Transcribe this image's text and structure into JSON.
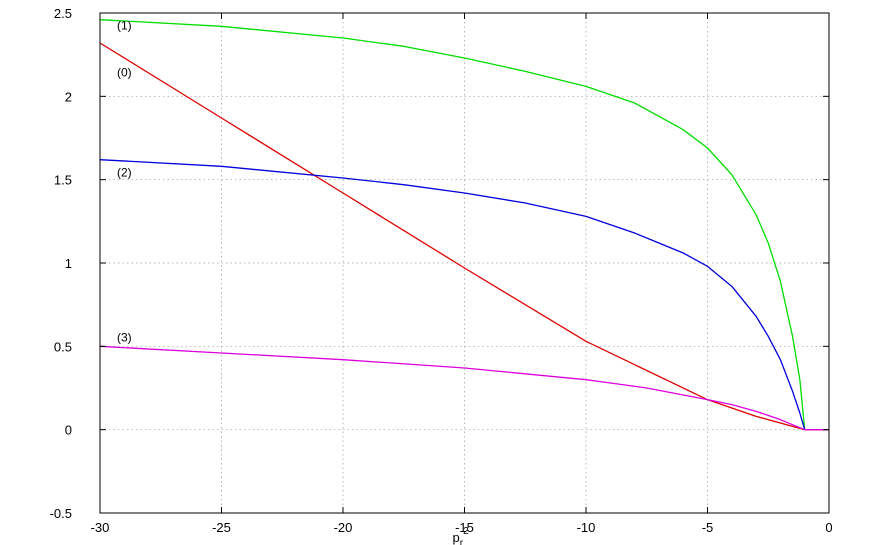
{
  "chart_data": {
    "type": "line",
    "title": "",
    "xlabel": "p",
    "xlabel_sub": "r",
    "xlabel_sup": "2",
    "ylabel": "",
    "xlim": [
      -30,
      0
    ],
    "ylim": [
      -0.5,
      2.5
    ],
    "grid": true,
    "legend": "none",
    "x_ticks": [
      -30,
      -25,
      -20,
      -15,
      -10,
      -5,
      0
    ],
    "y_ticks": [
      -0.5,
      0,
      0.5,
      1,
      1.5,
      2,
      2.5
    ],
    "x_tick_labels": [
      "-30",
      "-25",
      "-20",
      "-15",
      "-10",
      "-5",
      "0"
    ],
    "y_tick_labels": [
      "-0.5",
      "0",
      "0.5",
      "1",
      "1.5",
      "2",
      "2.5"
    ],
    "series": [
      {
        "label": "(1)",
        "color": "#00dd00",
        "label_at": [
          -29.3,
          2.4
        ],
        "x": [
          -30,
          -25,
          -20,
          -17.5,
          -15,
          -12.5,
          -10,
          -8,
          -7,
          -6,
          -5,
          -4,
          -3,
          -2.5,
          -2,
          -1.5,
          -1.2,
          -1
        ],
        "y": [
          2.46,
          2.42,
          2.35,
          2.3,
          2.23,
          2.15,
          2.06,
          1.96,
          1.88,
          1.8,
          1.69,
          1.53,
          1.29,
          1.12,
          0.89,
          0.56,
          0.3,
          0
        ]
      },
      {
        "label": "(0)",
        "color": "#dd0000",
        "label_at": [
          -29.3,
          2.12
        ],
        "x": [
          -30,
          -25,
          -20,
          -15,
          -10,
          -5,
          -4,
          -3,
          -2,
          -1.5,
          -1,
          0
        ],
        "y": [
          2.32,
          1.87,
          1.42,
          0.97,
          0.53,
          0.18,
          0.13,
          0.08,
          0.04,
          0.02,
          0,
          0
        ]
      },
      {
        "label": "(2)",
        "color": "#0000dd",
        "label_at": [
          -29.3,
          1.52
        ],
        "x": [
          -30,
          -25,
          -20,
          -17.5,
          -15,
          -12.5,
          -10,
          -8,
          -7,
          -6,
          -5,
          -4,
          -3,
          -2.5,
          -2,
          -1.5,
          -1.2,
          -1
        ],
        "y": [
          1.62,
          1.58,
          1.51,
          1.47,
          1.42,
          1.36,
          1.28,
          1.18,
          1.12,
          1.06,
          0.98,
          0.86,
          0.68,
          0.56,
          0.42,
          0.23,
          0.1,
          0
        ]
      },
      {
        "label": "(3)",
        "color": "#dd00dd",
        "label_at": [
          -29.3,
          0.53
        ],
        "x": [
          -30,
          -25,
          -20,
          -15,
          -10,
          -7.5,
          -5,
          -4,
          -3,
          -2,
          -1.5,
          -1,
          0
        ],
        "y": [
          0.5,
          0.46,
          0.42,
          0.37,
          0.3,
          0.25,
          0.18,
          0.15,
          0.11,
          0.06,
          0.03,
          0,
          0
        ]
      }
    ]
  }
}
